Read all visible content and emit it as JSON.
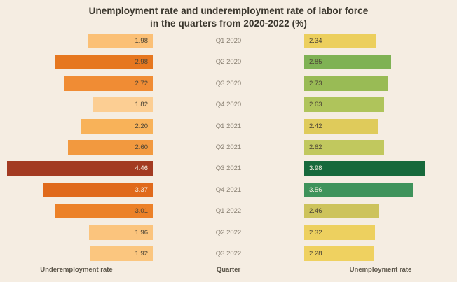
{
  "title": {
    "line1": "Unemployment rate and underemployment rate of labor force",
    "line2": "in the quarters from 2020-2022 (%)"
  },
  "columns": {
    "left_label": "Underemployment rate",
    "middle_label": "Quarter",
    "right_label": "Unemployment rate"
  },
  "theme": {
    "background": "#F5EDE2",
    "title_color": "#3B372E",
    "quarter_label_color": "#8A8173",
    "axis_label_color": "#5E584C",
    "bar_label_dark": "#4C4435",
    "bar_label_light": "#F6EFE2"
  },
  "chart_data": {
    "type": "bar",
    "subtype": "diverging-butterfly",
    "title": "Unemployment rate and underemployment rate of labor force in the quarters from 2020-2022 (%)",
    "categories": [
      "Q1 2020",
      "Q2 2020",
      "Q3 2020",
      "Q4 2020",
      "Q1 2021",
      "Q2 2021",
      "Q3 2021",
      "Q4 2021",
      "Q1 2022",
      "Q2 2022",
      "Q3 2022"
    ],
    "series": [
      {
        "name": "Underemployment rate",
        "side": "left",
        "axis_max": 4.46,
        "values": [
          1.98,
          2.98,
          2.72,
          1.82,
          2.2,
          2.6,
          4.46,
          3.37,
          3.01,
          1.96,
          1.92
        ],
        "bar_colors": [
          "#FBC076",
          "#E6771F",
          "#F08C34",
          "#FCCE93",
          "#F8B259",
          "#F2993F",
          "#A33B22",
          "#E06A1C",
          "#EC8128",
          "#FBC47D",
          "#FBC67F"
        ],
        "label_light": [
          false,
          false,
          false,
          false,
          false,
          false,
          true,
          true,
          false,
          false,
          false
        ]
      },
      {
        "name": "Unemployment rate",
        "side": "right",
        "axis_max": 3.98,
        "values": [
          2.34,
          2.85,
          2.73,
          2.63,
          2.42,
          2.62,
          3.98,
          3.56,
          2.46,
          2.32,
          2.28
        ],
        "bar_colors": [
          "#ECCF5D",
          "#7FB254",
          "#99BB55",
          "#AFC45B",
          "#DFCB5B",
          "#C1C85E",
          "#17693B",
          "#3F935B",
          "#CDC35C",
          "#EDD05F",
          "#EFD160"
        ],
        "label_light": [
          false,
          false,
          false,
          false,
          false,
          false,
          true,
          true,
          false,
          false,
          false
        ]
      }
    ],
    "value_format": "0.00",
    "grid": false,
    "legend": "none"
  }
}
